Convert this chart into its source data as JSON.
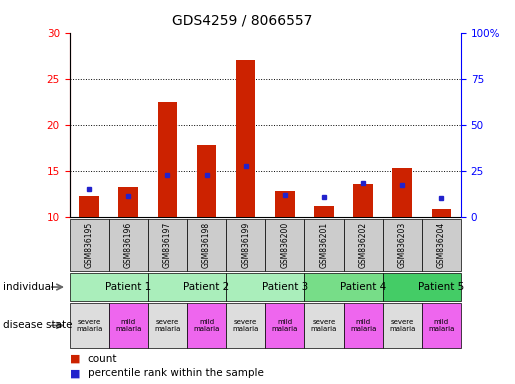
{
  "title": "GDS4259 / 8066557",
  "samples": [
    "GSM836195",
    "GSM836196",
    "GSM836197",
    "GSM836198",
    "GSM836199",
    "GSM836200",
    "GSM836201",
    "GSM836202",
    "GSM836203",
    "GSM836204"
  ],
  "counts": [
    12.3,
    13.3,
    22.5,
    17.8,
    27.0,
    12.8,
    11.2,
    13.6,
    15.3,
    10.9
  ],
  "percentiles": [
    13.0,
    12.3,
    14.5,
    14.5,
    15.5,
    12.4,
    12.2,
    13.7,
    13.5,
    12.1
  ],
  "patients": [
    {
      "label": "Patient 1",
      "start": 0,
      "end": 2,
      "color": "#aaeebb"
    },
    {
      "label": "Patient 2",
      "start": 2,
      "end": 4,
      "color": "#aaeebb"
    },
    {
      "label": "Patient 3",
      "start": 4,
      "end": 6,
      "color": "#aaeebb"
    },
    {
      "label": "Patient 4",
      "start": 6,
      "end": 8,
      "color": "#77dd88"
    },
    {
      "label": "Patient 5",
      "start": 8,
      "end": 10,
      "color": "#44cc66"
    }
  ],
  "disease_states": [
    {
      "label": "severe\nmalaria",
      "color": "#dddddd"
    },
    {
      "label": "mild\nmalaria",
      "color": "#ee66ee"
    },
    {
      "label": "severe\nmalaria",
      "color": "#dddddd"
    },
    {
      "label": "mild\nmalaria",
      "color": "#ee66ee"
    },
    {
      "label": "severe\nmalaria",
      "color": "#dddddd"
    },
    {
      "label": "mild\nmalaria",
      "color": "#ee66ee"
    },
    {
      "label": "severe\nmalaria",
      "color": "#dddddd"
    },
    {
      "label": "mild\nmalaria",
      "color": "#ee66ee"
    },
    {
      "label": "severe\nmalaria",
      "color": "#dddddd"
    },
    {
      "label": "mild\nmalaria",
      "color": "#ee66ee"
    }
  ],
  "ylim_left": [
    10,
    30
  ],
  "ylim_right": [
    0,
    100
  ],
  "yticks_left": [
    10,
    15,
    20,
    25,
    30
  ],
  "yticks_right": [
    0,
    25,
    50,
    75,
    100
  ],
  "bar_color": "#cc2200",
  "percentile_color": "#2222cc",
  "sample_bg_color": "#cccccc",
  "legend_count_color": "#cc2200",
  "legend_pct_color": "#2222cc"
}
